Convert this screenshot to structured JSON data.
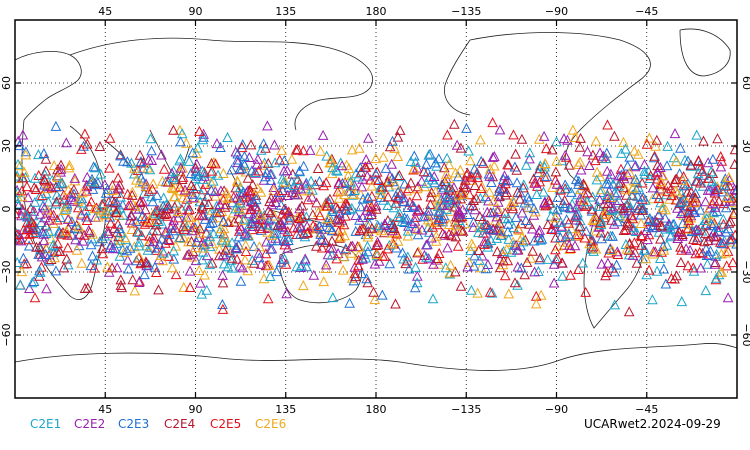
{
  "map": {
    "lon_ticks": [
      {
        "lon": 45,
        "label": "45"
      },
      {
        "lon": 90,
        "label": "90"
      },
      {
        "lon": 135,
        "label": "135"
      },
      {
        "lon": 180,
        "label": "180"
      },
      {
        "lon": 225,
        "label": "−135"
      },
      {
        "lon": 270,
        "label": "−90"
      },
      {
        "lon": 315,
        "label": "−45"
      }
    ],
    "lat_ticks": [
      {
        "lat": 60,
        "label": "60"
      },
      {
        "lat": 30,
        "label": "30"
      },
      {
        "lat": 0,
        "label": "0"
      },
      {
        "lat": -30,
        "label": "−30"
      },
      {
        "lat": -60,
        "label": "−60"
      }
    ],
    "lon_range": [
      0,
      360
    ],
    "lat_range": [
      -90,
      90
    ],
    "grid": true,
    "marker": "open-triangle"
  },
  "legend": [
    {
      "label": "C2E1",
      "color": "#1aa6c9"
    },
    {
      "label": "C2E2",
      "color": "#9a1fb0"
    },
    {
      "label": "C2E3",
      "color": "#1f6fd6"
    },
    {
      "label": "C2E4",
      "color": "#b5162b"
    },
    {
      "label": "C2E5",
      "color": "#e3101c"
    },
    {
      "label": "C2E6",
      "color": "#f0a81c"
    }
  ],
  "footer": {
    "label": "UCARwet2.2024-09-29"
  }
}
